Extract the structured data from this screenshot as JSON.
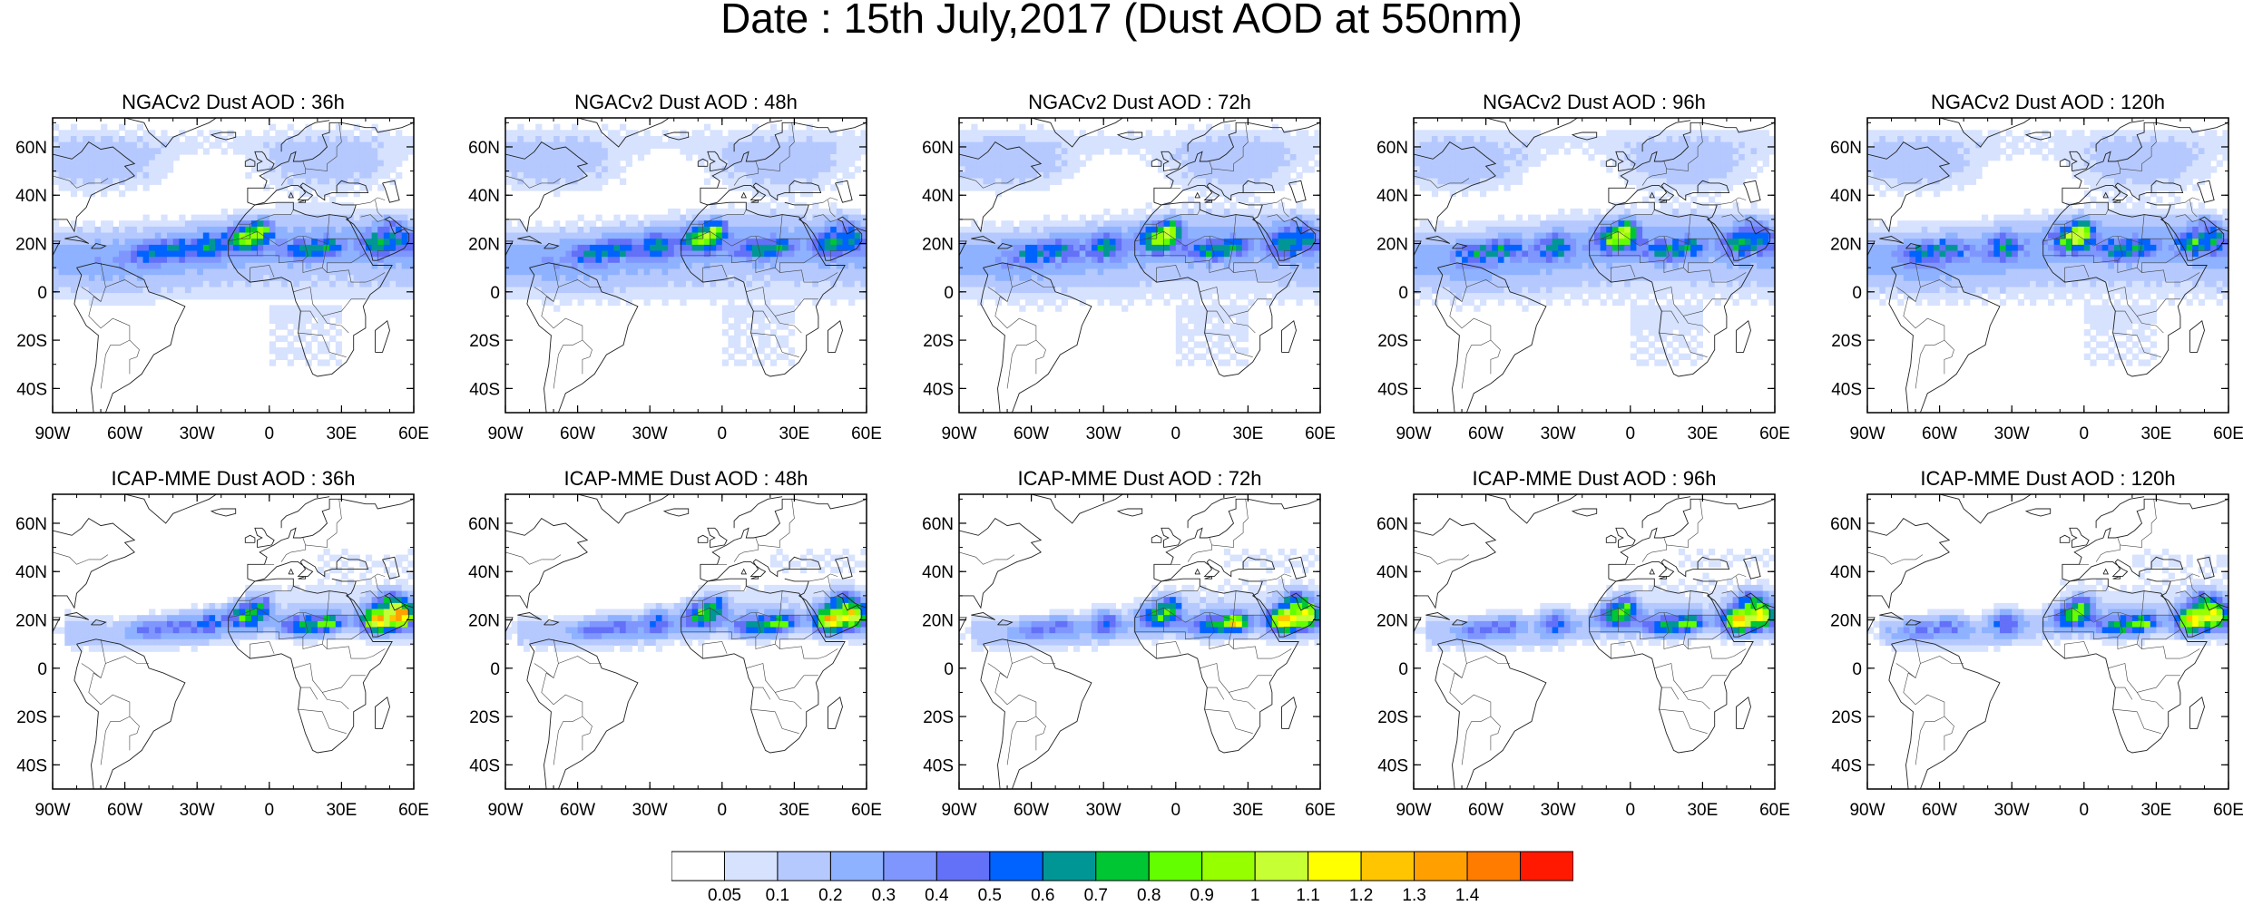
{
  "title": "Date : 15th July,2017 (Dust AOD at 550nm)",
  "lat_ticks": [
    "60N",
    "40N",
    "20N",
    "0",
    "20S",
    "40S"
  ],
  "lon_ticks": [
    "90W",
    "60W",
    "30W",
    "0",
    "30E",
    "60E"
  ],
  "panels": [
    {
      "title": "NGACv2 Dust AOD : 36h",
      "model": "NGACv2",
      "lead": "36h",
      "max_aod": 1.0
    },
    {
      "title": "NGACv2 Dust AOD : 48h",
      "model": "NGACv2",
      "lead": "48h",
      "max_aod": 1.0
    },
    {
      "title": "NGACv2 Dust AOD : 72h",
      "model": "NGACv2",
      "lead": "72h",
      "max_aod": 1.0
    },
    {
      "title": "NGACv2 Dust AOD : 96h",
      "model": "NGACv2",
      "lead": "96h",
      "max_aod": 1.0
    },
    {
      "title": "NGACv2 Dust AOD : 120h",
      "model": "NGACv2",
      "lead": "120h",
      "max_aod": 1.0
    },
    {
      "title": "ICAP-MME Dust AOD : 36h",
      "model": "ICAP-MME",
      "lead": "36h",
      "max_aod": 1.4
    },
    {
      "title": "ICAP-MME Dust AOD : 48h",
      "model": "ICAP-MME",
      "lead": "48h",
      "max_aod": 1.4
    },
    {
      "title": "ICAP-MME Dust AOD : 72h",
      "model": "ICAP-MME",
      "lead": "72h",
      "max_aod": 1.4
    },
    {
      "title": "ICAP-MME Dust AOD : 96h",
      "model": "ICAP-MME",
      "lead": "96h",
      "max_aod": 1.2
    },
    {
      "title": "ICAP-MME Dust AOD : 120h",
      "model": "ICAP-MME",
      "lead": "120h",
      "max_aod": 1.4
    }
  ],
  "colorbar": {
    "labels": [
      "0.05",
      "0.1",
      "0.2",
      "0.3",
      "0.4",
      "0.5",
      "0.6",
      "0.7",
      "0.8",
      "0.9",
      "1",
      "1.1",
      "1.2",
      "1.3",
      "1.4"
    ],
    "colors": [
      "#ffffff",
      "#d6e2ff",
      "#b5c9ff",
      "#8eb2ff",
      "#7f96ff",
      "#6370f8",
      "#0063ff",
      "#009696",
      "#00c633",
      "#63ff00",
      "#96ff00",
      "#c6ff33",
      "#ffff00",
      "#ffc600",
      "#ffa000",
      "#ff7c00",
      "#ff1900"
    ]
  }
}
